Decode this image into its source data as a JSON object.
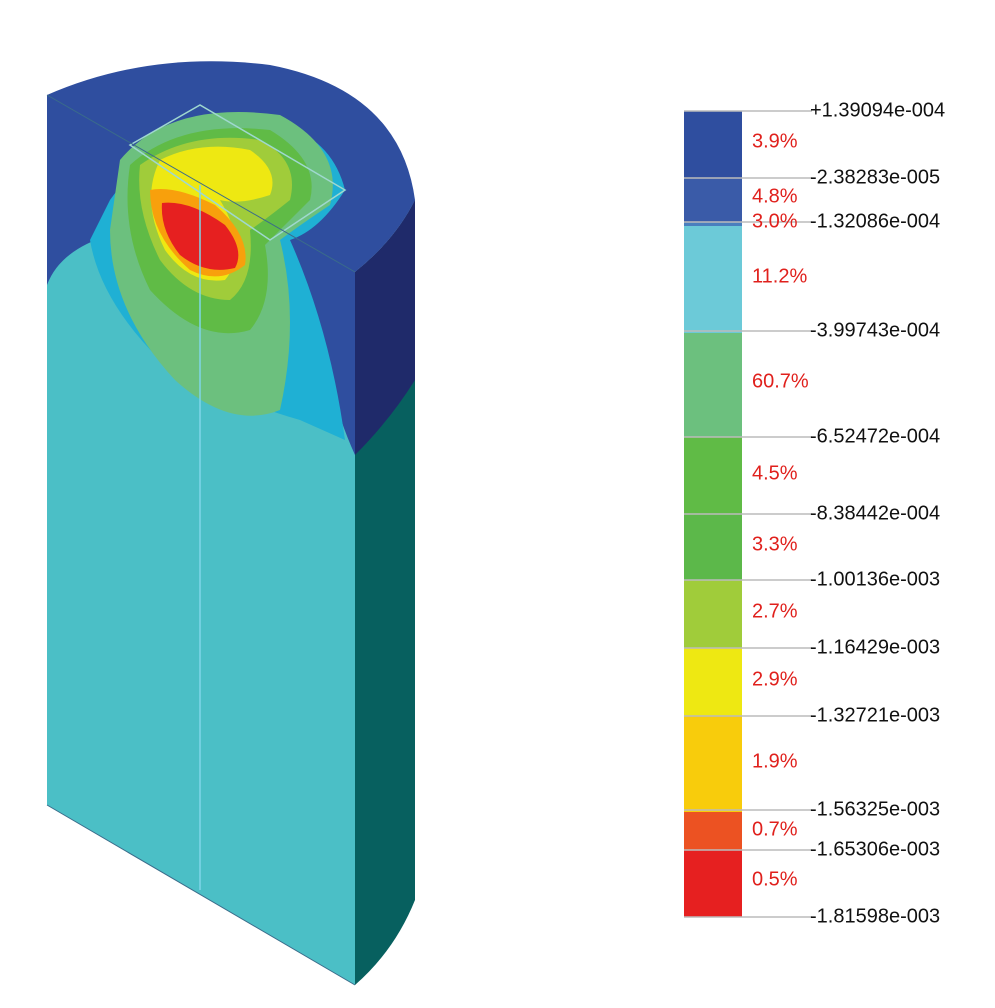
{
  "legend": {
    "levels": [
      "+1.39094e-004",
      "-2.38283e-005",
      "-1.32086e-004",
      "-3.99743e-004",
      "-6.52472e-004",
      "-8.38442e-004",
      "-1.00136e-003",
      "-1.16429e-003",
      "-1.32721e-003",
      "-1.56325e-003",
      "-1.65306e-003",
      "-1.81598e-003"
    ],
    "bands": [
      {
        "percent": "3.9%",
        "color": "#2f4e9f"
      },
      {
        "percent": "4.8%",
        "color": "#3a5ba8"
      },
      {
        "percent": "3.0%",
        "color": "#4a7fbe"
      },
      {
        "percent": "11.2%",
        "color": "#6ccad8"
      },
      {
        "percent": "60.7%",
        "color": "#6cc07e"
      },
      {
        "percent": "4.5%",
        "color": "#60bb46"
      },
      {
        "percent": "3.3%",
        "color": "#5cb84a"
      },
      {
        "percent": "2.7%",
        "color": "#a0cc3a"
      },
      {
        "percent": "2.9%",
        "color": "#eee812"
      },
      {
        "percent": "1.9%",
        "color": "#f8cc0c"
      },
      {
        "percent": "0.7%",
        "color": "#ec5222"
      },
      {
        "percent": "0.5%",
        "color": "#e62020"
      }
    ]
  }
}
